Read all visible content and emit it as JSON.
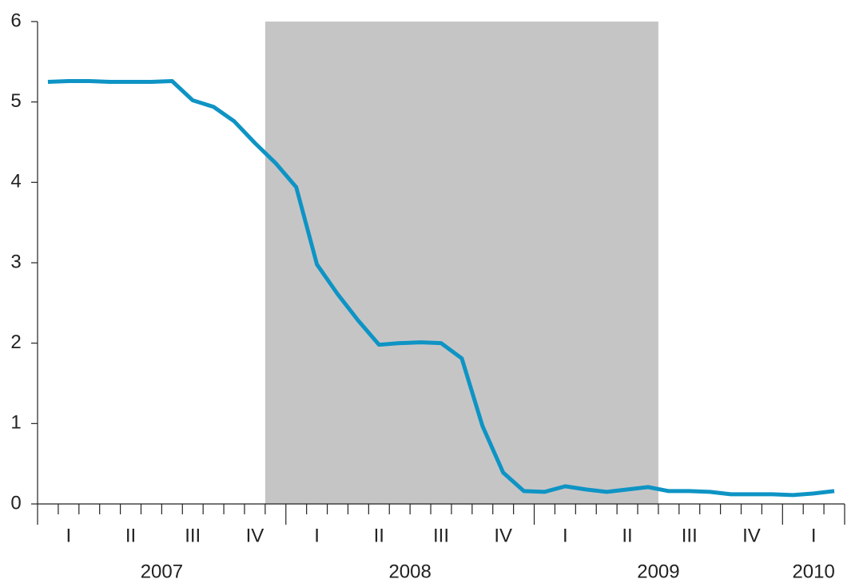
{
  "chart_data": {
    "type": "line",
    "categories": [
      null,
      null,
      null,
      null,
      null,
      null,
      null,
      null,
      null,
      null,
      null,
      null,
      null,
      null,
      null,
      null,
      null,
      null,
      null,
      null,
      null,
      null,
      null,
      null,
      null,
      null,
      null,
      null,
      null,
      null,
      null,
      null,
      null,
      null,
      null,
      null,
      null,
      null,
      null
    ],
    "series": [
      {
        "color": "#0e94c4",
        "values": [
          5.25,
          5.26,
          5.26,
          5.25,
          5.25,
          5.25,
          5.26,
          5.02,
          4.94,
          4.76,
          4.49,
          4.24,
          3.94,
          2.98,
          2.61,
          2.28,
          1.98,
          2.0,
          2.01,
          2.0,
          1.81,
          0.97,
          0.39,
          0.16,
          0.15,
          0.22,
          0.18,
          0.15,
          0.18,
          0.21,
          0.16,
          0.16,
          0.15,
          0.12,
          0.12,
          0.12,
          0.11,
          0.13,
          0.16
        ]
      }
    ],
    "quarters": [
      "I",
      "II",
      "III",
      "IV",
      "I",
      "II",
      "III",
      "IV",
      "I",
      "II",
      "III",
      "IV",
      "I"
    ],
    "years": [
      "2007",
      "2008",
      "2009",
      "2010"
    ],
    "shade": {
      "from": 11,
      "to": 30,
      "color": "#c6c5c6"
    },
    "ylim": [
      0,
      6
    ],
    "yticks": [
      0,
      1,
      2,
      3,
      4,
      5,
      6
    ]
  }
}
